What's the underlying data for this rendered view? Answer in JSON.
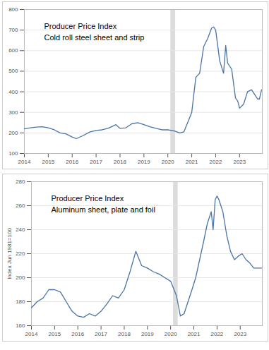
{
  "chart_data": [
    {
      "type": "line",
      "title": "Producer Price Index",
      "subtitle": "Cold roll steel sheet and strip",
      "x": [
        2014.0,
        2014.25,
        2014.5,
        2014.75,
        2015.0,
        2015.25,
        2015.5,
        2015.75,
        2016.0,
        2016.17,
        2016.42,
        2016.75,
        2017.0,
        2017.25,
        2017.5,
        2017.83,
        2018.0,
        2018.25,
        2018.5,
        2018.75,
        2019.0,
        2019.25,
        2019.5,
        2019.75,
        2020.0,
        2020.25,
        2020.5,
        2020.67,
        2020.83,
        2021.0,
        2021.17,
        2021.33,
        2021.5,
        2021.67,
        2021.83,
        2021.92,
        2022.0,
        2022.17,
        2022.33,
        2022.42,
        2022.5,
        2022.67,
        2022.83,
        2022.92,
        2023.0,
        2023.17,
        2023.33,
        2023.5,
        2023.67,
        2023.75,
        2023.83,
        2023.92
      ],
      "values": [
        220,
        225,
        228,
        230,
        225,
        215,
        200,
        195,
        180,
        172,
        185,
        205,
        212,
        215,
        222,
        240,
        222,
        225,
        245,
        250,
        240,
        230,
        222,
        215,
        215,
        210,
        200,
        205,
        250,
        300,
        470,
        490,
        620,
        660,
        710,
        715,
        700,
        550,
        490,
        625,
        540,
        510,
        370,
        355,
        320,
        340,
        400,
        410,
        380,
        365,
        365,
        410
      ],
      "color": "#4a74a8",
      "bands": [
        [
          2020.12,
          2020.32
        ]
      ],
      "xlim": [
        2014,
        2023.95
      ],
      "xticks": [
        2014,
        2015,
        2016,
        2017,
        2018,
        2019,
        2020,
        2021,
        2022,
        2023
      ],
      "ylim": [
        100,
        800
      ],
      "yticks": [
        100,
        200,
        300,
        400,
        500,
        600,
        700,
        800
      ],
      "grid": true
    },
    {
      "type": "line",
      "title": "Producer Price Index",
      "subtitle": "Aluminum sheet, plate and foil",
      "y_label": "Index Jun 1981=100",
      "x": [
        2014.0,
        2014.25,
        2014.5,
        2014.75,
        2015.0,
        2015.25,
        2015.5,
        2015.75,
        2016.0,
        2016.25,
        2016.5,
        2016.75,
        2017.0,
        2017.25,
        2017.5,
        2017.75,
        2018.0,
        2018.25,
        2018.5,
        2018.75,
        2019.0,
        2019.25,
        2019.5,
        2019.75,
        2020.0,
        2020.25,
        2020.42,
        2020.58,
        2020.75,
        2020.92,
        2021.08,
        2021.25,
        2021.42,
        2021.58,
        2021.75,
        2021.83,
        2021.92,
        2022.0,
        2022.08,
        2022.25,
        2022.42,
        2022.58,
        2022.75,
        2022.92,
        2023.08,
        2023.25,
        2023.42,
        2023.58,
        2023.75,
        2023.92
      ],
      "values": [
        175,
        180,
        183,
        190,
        190,
        188,
        180,
        172,
        168,
        167,
        170,
        168,
        172,
        178,
        185,
        183,
        190,
        205,
        222,
        210,
        208,
        205,
        203,
        200,
        197,
        185,
        168,
        170,
        180,
        190,
        200,
        215,
        230,
        245,
        255,
        240,
        265,
        268,
        265,
        255,
        235,
        222,
        215,
        218,
        220,
        215,
        212,
        208,
        208,
        208
      ],
      "color": "#4a74a8",
      "bands": [
        [
          2020.12,
          2020.32
        ]
      ],
      "xlim": [
        2014,
        2023.95
      ],
      "xticks": [
        2014,
        2015,
        2016,
        2017,
        2018,
        2019,
        2020,
        2021,
        2022,
        2023
      ],
      "ylim": [
        160,
        280
      ],
      "yticks": [
        160,
        180,
        200,
        220,
        240,
        260,
        280
      ],
      "grid": true
    }
  ]
}
